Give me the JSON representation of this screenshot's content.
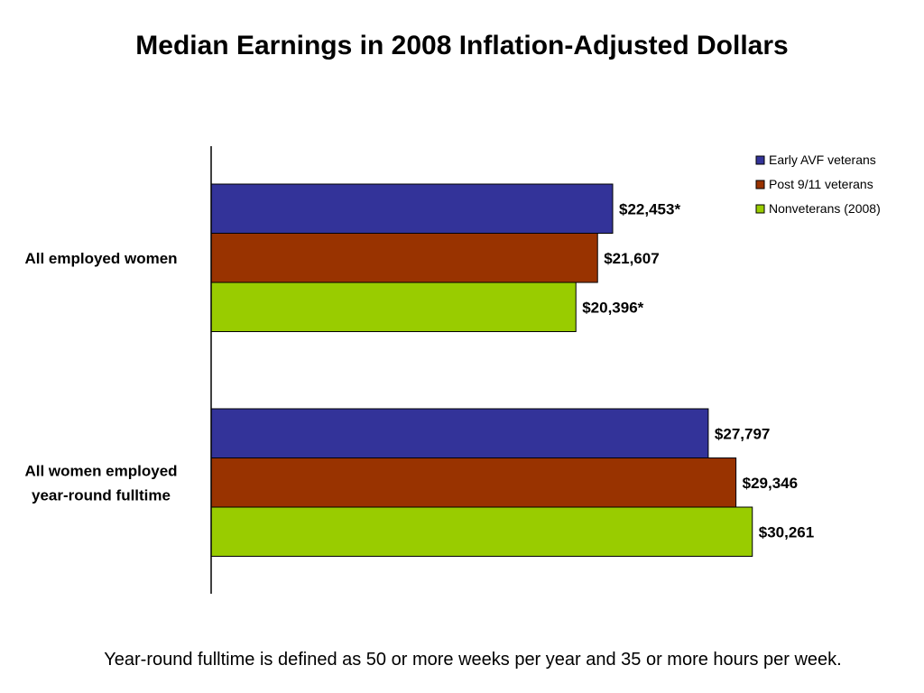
{
  "chart_data": {
    "type": "bar",
    "orientation": "horizontal",
    "title": "Median Earnings in 2008 Inflation-Adjusted Dollars",
    "categories": [
      [
        "All employed women"
      ],
      [
        "All women employed",
        "year-round fulltime"
      ]
    ],
    "series": [
      {
        "name": "Early AVF veterans",
        "color": "#333399",
        "values": [
          22453,
          27797
        ],
        "labels": [
          "$22,453*",
          "$27,797"
        ]
      },
      {
        "name": "Post 9/11 veterans",
        "color": "#993300",
        "values": [
          21607,
          29346
        ],
        "labels": [
          "$21,607",
          "$29,346"
        ]
      },
      {
        "name": "Nonveterans (2008)",
        "color": "#99CC00",
        "values": [
          20396,
          30261
        ],
        "labels": [
          "$20,396*",
          "$30,261"
        ]
      }
    ],
    "xlim": [
      0,
      33000
    ],
    "grid": false,
    "legend_position": "top-right"
  },
  "footnote": "Year-round fulltime is defined as 50 or more weeks per year and 35 or more hours per week."
}
